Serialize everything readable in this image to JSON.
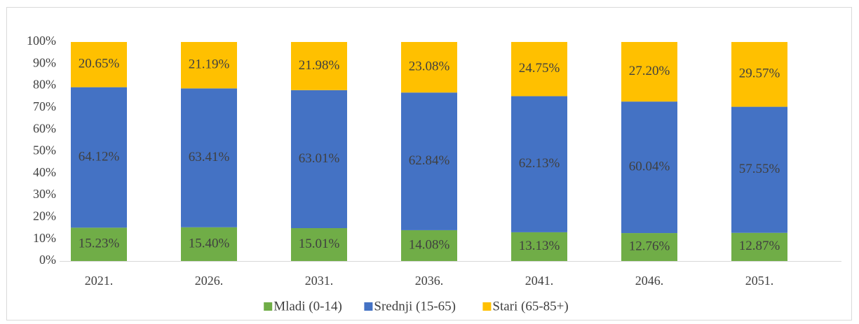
{
  "chart_data": {
    "type": "stacked_bar",
    "categories": [
      "2021.",
      "2026.",
      "2031.",
      "2036.",
      "2041.",
      "2046.",
      "2051."
    ],
    "series": [
      {
        "name": "Mladi (0-14)",
        "color": "#70ad47",
        "values": [
          15.23,
          15.4,
          15.01,
          14.08,
          13.13,
          12.76,
          12.87
        ],
        "value_labels": [
          "15.23%",
          "15.40%",
          "15.01%",
          "14.08%",
          "13.13%",
          "12.76%",
          "12.87%"
        ]
      },
      {
        "name": "Srednji (15-65)",
        "color": "#4472c4",
        "values": [
          64.12,
          63.41,
          63.01,
          62.84,
          62.13,
          60.04,
          57.55
        ],
        "value_labels": [
          "64.12%",
          "63.41%",
          "63.01%",
          "62.84%",
          "62.13%",
          "60.04%",
          "57.55%"
        ]
      },
      {
        "name": "Stari (65-85+)",
        "color": "#ffc000",
        "values": [
          20.65,
          21.19,
          21.98,
          23.08,
          24.75,
          27.2,
          29.57
        ],
        "value_labels": [
          "20.65%",
          "21.19%",
          "21.98%",
          "23.08%",
          "24.75%",
          "27.20%",
          "29.57%"
        ]
      }
    ],
    "ylim": [
      0,
      100
    ],
    "yticks": [
      {
        "value": 0,
        "label": "0%"
      },
      {
        "value": 10,
        "label": "10%"
      },
      {
        "value": 20,
        "label": "20%"
      },
      {
        "value": 30,
        "label": "30%"
      },
      {
        "value": 40,
        "label": "40%"
      },
      {
        "value": 50,
        "label": "50%"
      },
      {
        "value": 60,
        "label": "60%"
      },
      {
        "value": 70,
        "label": "70%"
      },
      {
        "value": 80,
        "label": "80%"
      },
      {
        "value": 90,
        "label": "90%"
      },
      {
        "value": 100,
        "label": "100%"
      }
    ],
    "legend": "bottom"
  }
}
